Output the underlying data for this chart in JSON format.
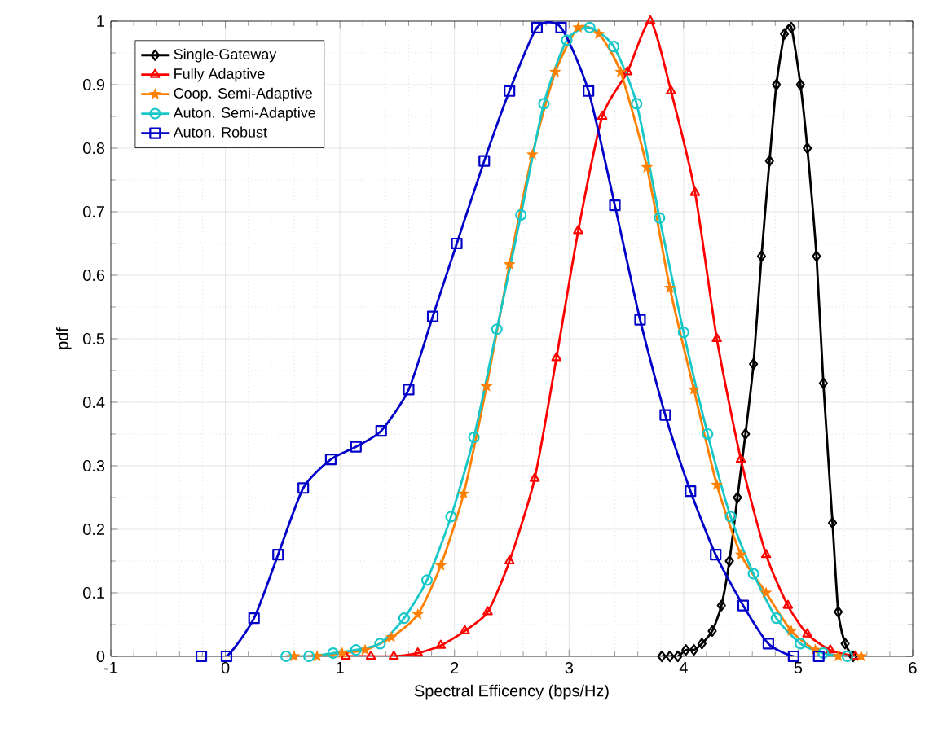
{
  "chart_data": {
    "type": "line",
    "xlabel": "Spectral Efficency (bps/Hz)",
    "ylabel": "pdf",
    "xlim": [
      -1,
      6
    ],
    "xticks": [
      -1,
      0,
      1,
      2,
      3,
      4,
      5,
      6
    ],
    "ylim": [
      0,
      1
    ],
    "yticks": [
      0,
      0.1,
      0.2,
      0.3,
      0.4,
      0.5,
      0.6,
      0.7,
      0.8,
      0.9,
      1
    ],
    "grid": true,
    "legend": "top left",
    "line_style": "solid",
    "series": [
      {
        "name": "Single-Gateway",
        "color": "#000000",
        "marker": "diamond",
        "x": [
          3.81,
          3.88,
          3.95,
          4.02,
          4.09,
          4.16,
          4.25,
          4.33,
          4.4,
          4.47,
          4.54,
          4.61,
          4.68,
          4.75,
          4.81,
          4.88,
          4.94,
          5.02,
          5.08,
          5.16,
          5.22,
          5.3,
          5.35,
          5.41,
          5.48
        ],
        "values": [
          0,
          0,
          0,
          0.01,
          0.01,
          0.02,
          0.04,
          0.08,
          0.15,
          0.25,
          0.35,
          0.46,
          0.63,
          0.78,
          0.9,
          0.98,
          0.99,
          0.9,
          0.8,
          0.63,
          0.43,
          0.21,
          0.07,
          0.02,
          0
        ]
      },
      {
        "name": "Fully Adaptive",
        "color": "#ff0000",
        "marker": "triangle",
        "x": [
          1.05,
          1.27,
          1.47,
          1.68,
          1.88,
          2.09,
          2.29,
          2.48,
          2.7,
          2.89,
          3.08,
          3.29,
          3.51,
          3.71,
          3.89,
          4.1,
          4.29,
          4.5,
          4.72,
          4.91,
          5.08,
          5.28,
          5.5
        ],
        "values": [
          0,
          0,
          0,
          0.005,
          0.017,
          0.04,
          0.07,
          0.15,
          0.28,
          0.47,
          0.67,
          0.85,
          0.92,
          1,
          0.89,
          0.73,
          0.5,
          0.31,
          0.16,
          0.08,
          0.035,
          0.01,
          0
        ]
      },
      {
        "name": "Coop. Semi-Adaptive",
        "color": "#ff8000",
        "marker": "star",
        "x": [
          0.6,
          0.8,
          1.02,
          1.22,
          1.45,
          1.68,
          1.88,
          2.08,
          2.28,
          2.48,
          2.68,
          2.88,
          3.08,
          3.26,
          3.45,
          3.68,
          3.88,
          4.09,
          4.29,
          4.5,
          4.72,
          4.94,
          5.15,
          5.35,
          5.55
        ],
        "values": [
          0,
          0,
          0.005,
          0.01,
          0.03,
          0.066,
          0.143,
          0.256,
          0.425,
          0.617,
          0.79,
          0.92,
          0.99,
          0.98,
          0.92,
          0.77,
          0.58,
          0.42,
          0.27,
          0.16,
          0.1,
          0.04,
          0.01,
          0,
          0
        ]
      },
      {
        "name": "Auton. Semi-Adaptive",
        "color": "#17c7c7",
        "marker": "circle",
        "x": [
          0.53,
          0.73,
          0.94,
          1.14,
          1.35,
          1.56,
          1.76,
          1.97,
          2.17,
          2.37,
          2.58,
          2.78,
          2.98,
          3.18,
          3.39,
          3.59,
          3.79,
          4.0,
          4.21,
          4.41,
          4.61,
          4.81,
          5.02,
          5.22,
          5.43
        ],
        "values": [
          0,
          0,
          0.005,
          0.01,
          0.02,
          0.06,
          0.12,
          0.22,
          0.345,
          0.515,
          0.695,
          0.87,
          0.97,
          0.99,
          0.96,
          0.87,
          0.69,
          0.51,
          0.35,
          0.22,
          0.13,
          0.06,
          0.02,
          0.005,
          0
        ]
      },
      {
        "name": "Auton. Robust",
        "color": "#0000c8",
        "marker": "square",
        "x": [
          -0.21,
          0.01,
          0.25,
          0.46,
          0.68,
          0.92,
          1.14,
          1.36,
          1.6,
          1.81,
          2.02,
          2.26,
          2.48,
          2.72,
          2.93,
          3.17,
          3.4,
          3.62,
          3.84,
          4.06,
          4.28,
          4.52,
          4.74,
          4.96,
          5.18
        ],
        "values": [
          0,
          0,
          0.06,
          0.16,
          0.265,
          0.31,
          0.33,
          0.355,
          0.42,
          0.535,
          0.65,
          0.78,
          0.89,
          0.99,
          0.99,
          0.89,
          0.71,
          0.53,
          0.38,
          0.26,
          0.16,
          0.08,
          0.02,
          0,
          0
        ]
      }
    ]
  }
}
